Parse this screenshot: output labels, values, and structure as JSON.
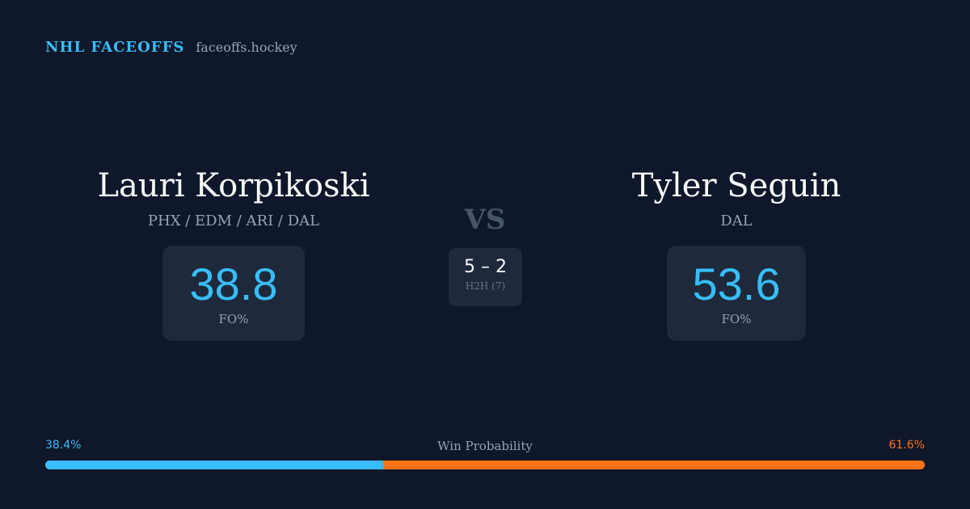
{
  "brand": {
    "name": "NHL FACEOFFS",
    "url": "faceoffs.hockey"
  },
  "players": {
    "left": {
      "name": "Lauri Korpikoski",
      "teams": "PHX / EDM / ARI / DAL",
      "stat_value": "38.8",
      "stat_label": "FO%"
    },
    "right": {
      "name": "Tyler Seguin",
      "teams": "DAL",
      "stat_value": "53.6",
      "stat_label": "FO%"
    }
  },
  "versus": {
    "label": "VS",
    "h2h_score": "5 – 2",
    "h2h_label": "H2H (7)"
  },
  "win_probability": {
    "title": "Win Probability",
    "left_label": "38.4%",
    "right_label": "61.6%",
    "left_fraction": 0.384,
    "right_fraction": 0.616,
    "left_color": "#38bdf8",
    "right_color": "#f97316"
  }
}
